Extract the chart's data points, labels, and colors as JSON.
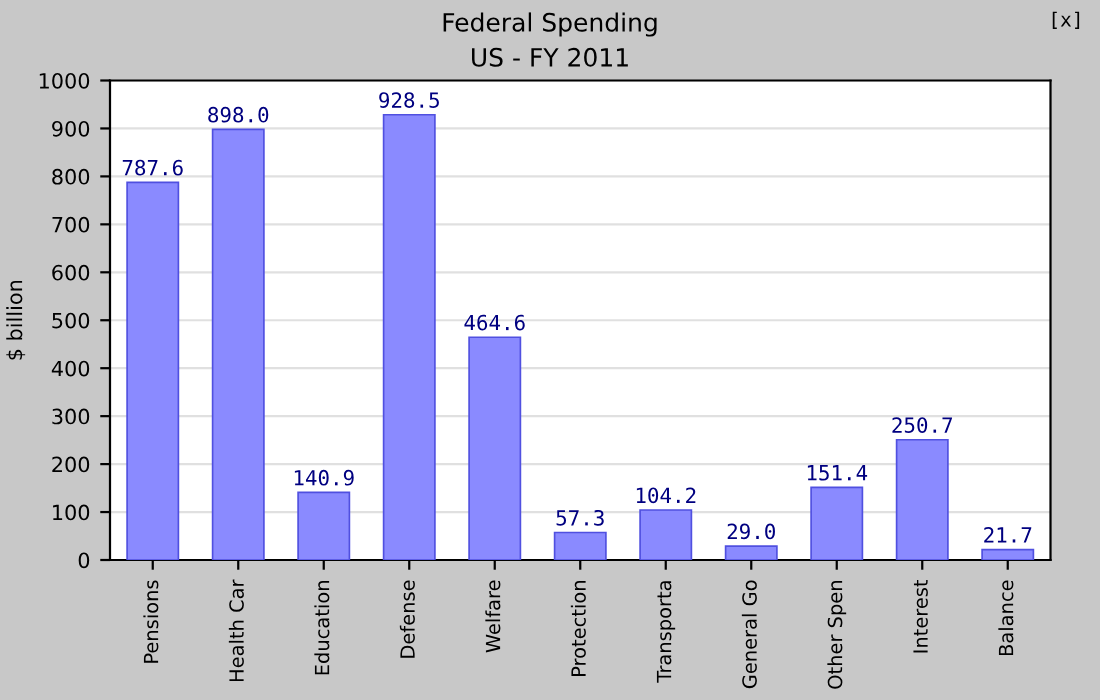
{
  "chart_data": {
    "type": "bar",
    "title": "Federal Spending",
    "subtitle": "US - FY 2011",
    "ylabel": "$ billion",
    "categories": [
      "Pensions",
      "Health Car",
      "Education",
      "Defense",
      "Welfare",
      "Protection",
      "Transporta",
      "General Go",
      "Other Spen",
      "Interest",
      "Balance"
    ],
    "values": [
      787.6,
      898.0,
      140.9,
      928.5,
      464.6,
      57.3,
      104.2,
      29.0,
      151.4,
      250.7,
      21.7
    ],
    "value_labels": [
      "787.6",
      "898.0",
      "140.9",
      "928.5",
      "464.6",
      "57.3",
      "104.2",
      "29.0",
      "151.4",
      "250.7",
      "21.7"
    ],
    "color": "#8a8aff",
    "ylim": [
      0,
      1000
    ],
    "yticks": [
      0,
      100,
      200,
      300,
      400,
      500,
      600,
      700,
      800,
      900,
      1000
    ],
    "grid": "y",
    "annotations": [
      "[x]"
    ]
  }
}
